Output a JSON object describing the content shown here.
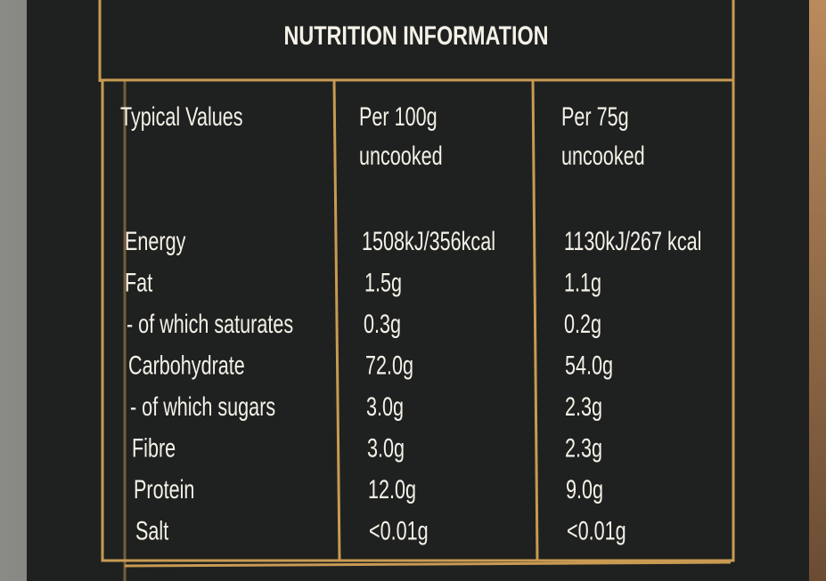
{
  "title": "NUTRITION INFORMATION",
  "table": {
    "header": [
      [
        "Typical Values"
      ],
      [
        "Per 100g",
        "uncooked"
      ],
      [
        "Per 75g",
        "uncooked"
      ]
    ],
    "rows": [
      [
        "Energy",
        "1508kJ/356kcal",
        "1130kJ/267 kcal"
      ],
      [
        "Fat",
        "1.5g",
        "1.1g"
      ],
      [
        "- of which saturates",
        "0.3g",
        "0.2g"
      ],
      [
        "Carbohydrate",
        "72.0g",
        "54.0g"
      ],
      [
        "- of which sugars",
        "3.0g",
        "2.3g"
      ],
      [
        "Fibre",
        "3.0g",
        "2.3g"
      ],
      [
        "Protein",
        "12.0g",
        "9.0g"
      ],
      [
        "Salt",
        "<0.01g",
        "<0.01g"
      ]
    ]
  }
}
